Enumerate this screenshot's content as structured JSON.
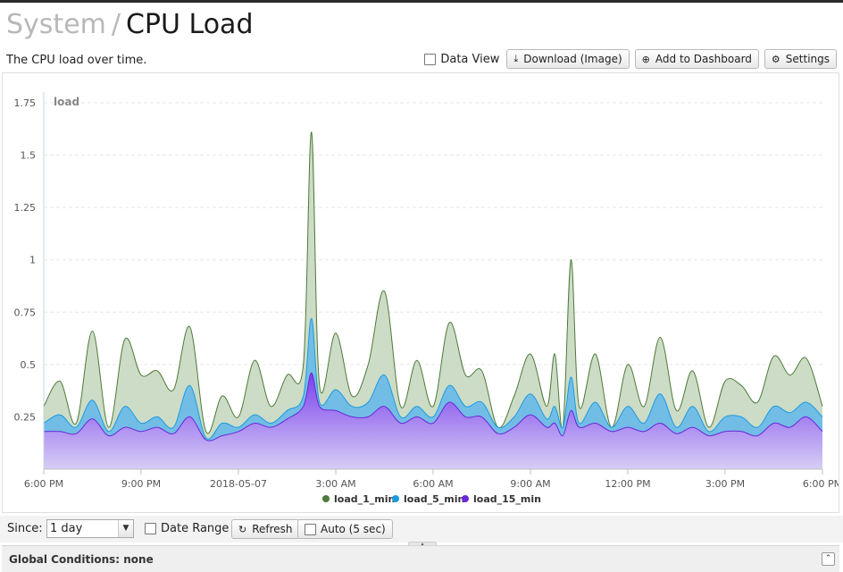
{
  "header": {
    "breadcrumb_parent": "System",
    "separator": "/",
    "title": "CPU Load",
    "description": "The CPU load over time."
  },
  "toolbar": {
    "data_view_label": "Data View",
    "download_label": "Download (Image)",
    "download_icon": "download-icon",
    "add_dashboard_label": "Add to Dashboard",
    "add_dashboard_icon": "plus-circle-icon",
    "settings_label": "Settings",
    "settings_icon": "gear-icon"
  },
  "controls": {
    "since_label": "Since:",
    "since_value": "1 day",
    "date_range_label": "Date Range",
    "refresh_label": "Refresh",
    "auto_label": "Auto (5 sec)"
  },
  "footer": {
    "global_conditions_label": "Global Conditions: none"
  },
  "chart_data": {
    "type": "area",
    "ylabel": "load",
    "ylim": [
      0,
      1.75
    ],
    "yticks": [
      0.25,
      0.5,
      0.75,
      1,
      1.25,
      1.5,
      1.75
    ],
    "ytick_labels": [
      "0.25",
      "0.5",
      "0.75",
      "1",
      "1.25",
      "1.5",
      "1.75"
    ],
    "xlim": [
      0,
      24
    ],
    "xtick_positions": [
      0,
      3,
      6,
      9,
      12,
      15,
      18,
      21,
      24
    ],
    "xtick_labels": [
      "6:00 PM",
      "9:00 PM",
      "2018-05-07",
      "3:00 AM",
      "6:00 AM",
      "9:00 AM",
      "12:00 PM",
      "3:00 PM",
      "6:00 PM"
    ],
    "x_unit": "hours since 2018-05-06 6:00 PM",
    "legend_position": "bottom-center",
    "grid": true,
    "x": [
      0,
      0.5,
      1,
      1.5,
      2,
      2.5,
      3,
      3.5,
      4,
      4.5,
      5,
      5.5,
      6,
      6.5,
      7,
      7.5,
      8,
      8.25,
      8.5,
      9,
      9.5,
      10,
      10.5,
      11,
      11.5,
      12,
      12.5,
      13,
      13.5,
      14,
      14.5,
      15,
      15.5,
      15.75,
      16,
      16.25,
      16.5,
      17,
      17.5,
      18,
      18.5,
      19,
      19.5,
      20,
      20.5,
      21,
      21.5,
      22,
      22.5,
      23,
      23.5,
      24
    ],
    "series": [
      {
        "name": "load_1_min",
        "color": "#4d7a3a",
        "fill": "#c9d8c1",
        "values": [
          0.3,
          0.42,
          0.22,
          0.66,
          0.2,
          0.62,
          0.45,
          0.47,
          0.38,
          0.68,
          0.18,
          0.35,
          0.25,
          0.52,
          0.3,
          0.45,
          0.5,
          1.61,
          0.4,
          0.65,
          0.35,
          0.5,
          0.85,
          0.3,
          0.52,
          0.3,
          0.7,
          0.45,
          0.47,
          0.2,
          0.35,
          0.55,
          0.3,
          0.55,
          0.2,
          1.0,
          0.3,
          0.55,
          0.2,
          0.5,
          0.3,
          0.63,
          0.28,
          0.47,
          0.2,
          0.42,
          0.4,
          0.32,
          0.54,
          0.45,
          0.53,
          0.3
        ]
      },
      {
        "name": "load_5_min",
        "color": "#1a9be0",
        "fill": "#74bfe9",
        "values": [
          0.22,
          0.26,
          0.2,
          0.33,
          0.18,
          0.3,
          0.22,
          0.25,
          0.2,
          0.4,
          0.15,
          0.22,
          0.2,
          0.26,
          0.22,
          0.28,
          0.35,
          0.72,
          0.32,
          0.38,
          0.3,
          0.32,
          0.45,
          0.25,
          0.3,
          0.25,
          0.4,
          0.3,
          0.32,
          0.2,
          0.25,
          0.36,
          0.24,
          0.3,
          0.2,
          0.44,
          0.22,
          0.32,
          0.2,
          0.3,
          0.22,
          0.36,
          0.2,
          0.3,
          0.18,
          0.25,
          0.25,
          0.2,
          0.3,
          0.27,
          0.32,
          0.25
        ]
      },
      {
        "name": "load_15_min",
        "color": "#6a28d8",
        "fill": "#8c5cf0",
        "values": [
          0.18,
          0.18,
          0.17,
          0.24,
          0.16,
          0.2,
          0.18,
          0.2,
          0.17,
          0.25,
          0.14,
          0.16,
          0.18,
          0.22,
          0.2,
          0.24,
          0.3,
          0.46,
          0.3,
          0.28,
          0.25,
          0.25,
          0.3,
          0.22,
          0.25,
          0.22,
          0.32,
          0.25,
          0.25,
          0.17,
          0.2,
          0.26,
          0.2,
          0.22,
          0.16,
          0.28,
          0.2,
          0.22,
          0.18,
          0.2,
          0.18,
          0.22,
          0.17,
          0.2,
          0.16,
          0.18,
          0.18,
          0.16,
          0.22,
          0.2,
          0.25,
          0.18
        ]
      }
    ]
  }
}
